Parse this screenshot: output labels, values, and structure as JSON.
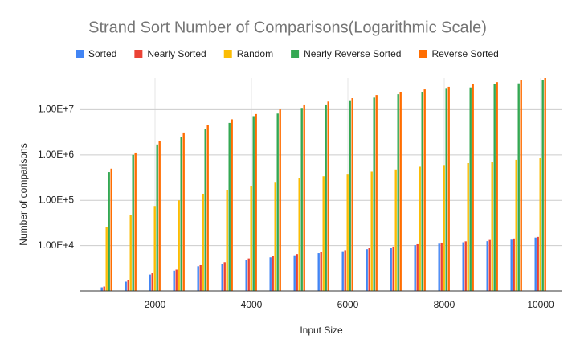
{
  "chart_data": {
    "type": "bar",
    "title": "Strand Sort Number of Comparisons(Logarithmic Scale)",
    "x_label": "Input Size",
    "y_label": "Number of comparisons",
    "x": [
      1000,
      1500,
      2000,
      2500,
      3000,
      3500,
      4000,
      4500,
      5000,
      5500,
      6000,
      6500,
      7000,
      7500,
      8000,
      8500,
      9000,
      9500,
      10000
    ],
    "series": [
      {
        "name": "Sorted",
        "color": "#4285f4",
        "values": [
          1200,
          1600,
          2300,
          2800,
          3500,
          4000,
          4900,
          5500,
          6100,
          6800,
          7500,
          8300,
          9000,
          10200,
          11000,
          11800,
          12500,
          13500,
          15000
        ]
      },
      {
        "name": "Nearly Sorted",
        "color": "#ea4335",
        "values": [
          1250,
          1750,
          2450,
          2950,
          3700,
          4300,
          5200,
          5800,
          6500,
          7200,
          7900,
          8800,
          9500,
          10700,
          11600,
          12400,
          13300,
          14300,
          15500
        ]
      },
      {
        "name": "Random",
        "color": "#fbbc04",
        "values": [
          26000,
          48000,
          75000,
          100000,
          140000,
          165000,
          210000,
          245000,
          310000,
          340000,
          370000,
          430000,
          480000,
          550000,
          600000,
          660000,
          700000,
          780000,
          850000
        ]
      },
      {
        "name": "Nearly Reverse Sorted",
        "color": "#34a853",
        "values": [
          420000,
          1000000,
          1700000,
          2500000,
          3800000,
          5100000,
          7200000,
          8200000,
          10500000,
          12500000,
          15500000,
          18500000,
          22000000,
          24000000,
          29000000,
          31000000,
          37000000,
          38000000,
          46000000
        ]
      },
      {
        "name": "Reverse Sorted",
        "color": "#ff6d01",
        "values": [
          500000,
          1125000,
          2000000,
          3125000,
          4500000,
          6125000,
          8000000,
          10125000,
          12500000,
          15125000,
          18000000,
          21125000,
          24500000,
          28125000,
          32000000,
          36125000,
          40500000,
          45125000,
          50000000
        ]
      }
    ],
    "xlim": [
      450,
      10450
    ],
    "xticks": [
      2000,
      4000,
      6000,
      8000,
      10000
    ],
    "ylim": [
      1000,
      50000000
    ],
    "log_y": true,
    "yticks": [
      {
        "value": 10000,
        "label": "1.00E+4"
      },
      {
        "value": 100000,
        "label": "1.00E+5"
      },
      {
        "value": 1000000,
        "label": "1.00E+6"
      },
      {
        "value": 10000000,
        "label": "1.00E+7"
      }
    ],
    "grid": true,
    "legend": "top"
  }
}
